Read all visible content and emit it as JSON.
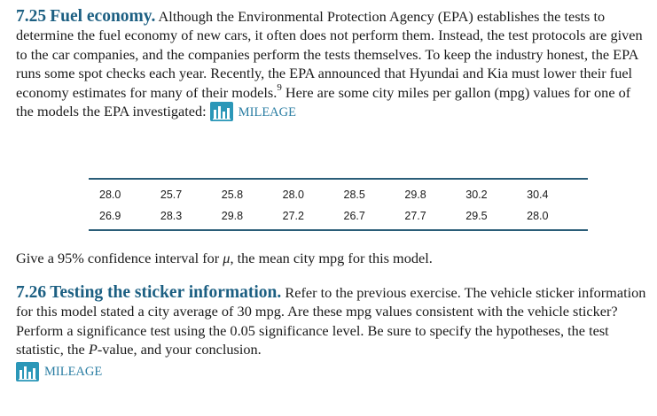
{
  "exercise_1": {
    "number": "7.25",
    "title": "Fuel economy.",
    "body_before_footnote": "Although the Environmental Protection Agency (EPA) establishes the tests to determine the fuel economy of new cars, it often does not perform them. Instead, the test protocols are given to the car companies, and the companies perform the tests themselves. To keep the industry honest, the EPA runs some spot checks each year. Recently, the EPA announced that Hyundai and Kia must lower their fuel economy estimates for many of their models.",
    "footnote_marker": "9",
    "body_after_footnote": "Here are some city miles per gallon (mpg) values for one of the models the EPA investigated:",
    "dataset_label": "MILEAGE"
  },
  "mpg_table": {
    "rows": [
      [
        "28.0",
        "25.7",
        "25.8",
        "28.0",
        "28.5",
        "29.8",
        "30.2",
        "30.4"
      ],
      [
        "26.9",
        "28.3",
        "29.8",
        "27.2",
        "26.7",
        "27.7",
        "29.5",
        "28.0"
      ]
    ]
  },
  "question": {
    "before_symbol": "Give a 95% confidence interval for",
    "symbol": "μ",
    "after_symbol": ", the mean city mpg for this model."
  },
  "exercise_2": {
    "number": "7.26",
    "title": "Testing the sticker information.",
    "body_before_p": "Refer to the previous exercise. The vehicle sticker information for this model stated a city average of 30 mpg. Are these mpg values consistent with the vehicle sticker? Perform a significance test using the 0.05 significance level. Be sure to specify the hypotheses, the test statistic, the",
    "p_italic": "P",
    "body_after_p": "-value, and your conclusion.",
    "dataset_label": "MILEAGE"
  },
  "colors": {
    "heading": "#1c5f82",
    "dataset_icon": "#2b97b8",
    "table_rule": "#2a5d78"
  }
}
